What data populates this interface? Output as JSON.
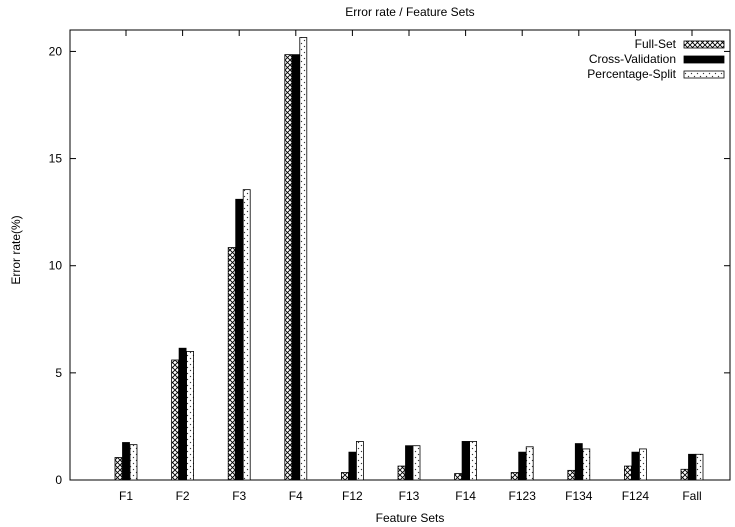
{
  "chart_data": {
    "type": "bar",
    "title": "Error rate / Feature Sets",
    "xlabel": "Feature Sets",
    "ylabel": "Error rate(%)",
    "ylim": [
      0,
      21
    ],
    "yticks": [
      0,
      5,
      10,
      15,
      20
    ],
    "categories": [
      "F1",
      "F2",
      "F3",
      "F4",
      "F12",
      "F13",
      "F14",
      "F123",
      "F134",
      "F124",
      "Fall"
    ],
    "series": [
      {
        "name": "Full-Set",
        "pattern": "crosshatch",
        "values": [
          1.05,
          5.6,
          10.85,
          19.85,
          0.35,
          0.65,
          0.3,
          0.35,
          0.45,
          0.65,
          0.5
        ]
      },
      {
        "name": "Cross-Validation",
        "pattern": "solid",
        "values": [
          1.75,
          6.15,
          13.1,
          19.85,
          1.3,
          1.6,
          1.8,
          1.3,
          1.7,
          1.3,
          1.2
        ]
      },
      {
        "name": "Percentage-Split",
        "pattern": "dotted",
        "values": [
          1.65,
          6.0,
          13.55,
          20.65,
          1.8,
          1.6,
          1.8,
          1.55,
          1.45,
          1.45,
          1.2
        ]
      }
    ],
    "legend_position": "top-right",
    "grid": false
  }
}
